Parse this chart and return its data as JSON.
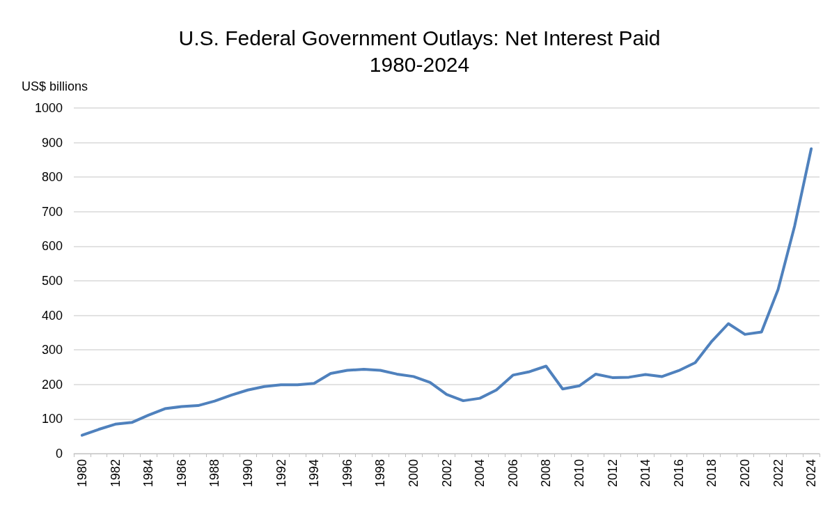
{
  "chart_data": {
    "type": "line",
    "title": "U.S. Federal Government Outlays: Net Interest Paid\n1980-2024",
    "ylabel": "US$ billions",
    "categories": [
      "1980",
      null,
      "1982",
      null,
      "1984",
      null,
      "1986",
      null,
      "1988",
      null,
      "1990",
      null,
      "1992",
      null,
      "1994",
      null,
      "1996",
      null,
      "1998",
      null,
      "2000",
      null,
      "2002",
      null,
      "2004",
      null,
      "2006",
      null,
      "2008",
      null,
      "2010",
      null,
      "2012",
      null,
      "2014",
      null,
      "2016",
      null,
      "2018",
      null,
      "2020",
      null,
      "2022",
      null,
      "2024"
    ],
    "series": [
      {
        "color": "#4f81bd",
        "values": [
          53,
          70,
          85,
          90,
          111,
          130,
          136,
          139,
          152,
          169,
          184,
          194,
          199,
          199,
          203,
          232,
          241,
          244,
          241,
          230,
          223,
          206,
          171,
          153,
          160,
          184,
          227,
          237,
          253,
          187,
          196,
          230,
          220,
          221,
          229,
          223,
          240,
          263,
          325,
          376,
          345,
          352,
          475,
          659,
          882
        ]
      }
    ],
    "ylim": [
      0,
      1000
    ],
    "yticks": [
      0,
      100,
      200,
      300,
      400,
      500,
      600,
      700,
      800,
      900,
      1000
    ],
    "grid": "y",
    "marker": "none",
    "line_style": "solid"
  }
}
